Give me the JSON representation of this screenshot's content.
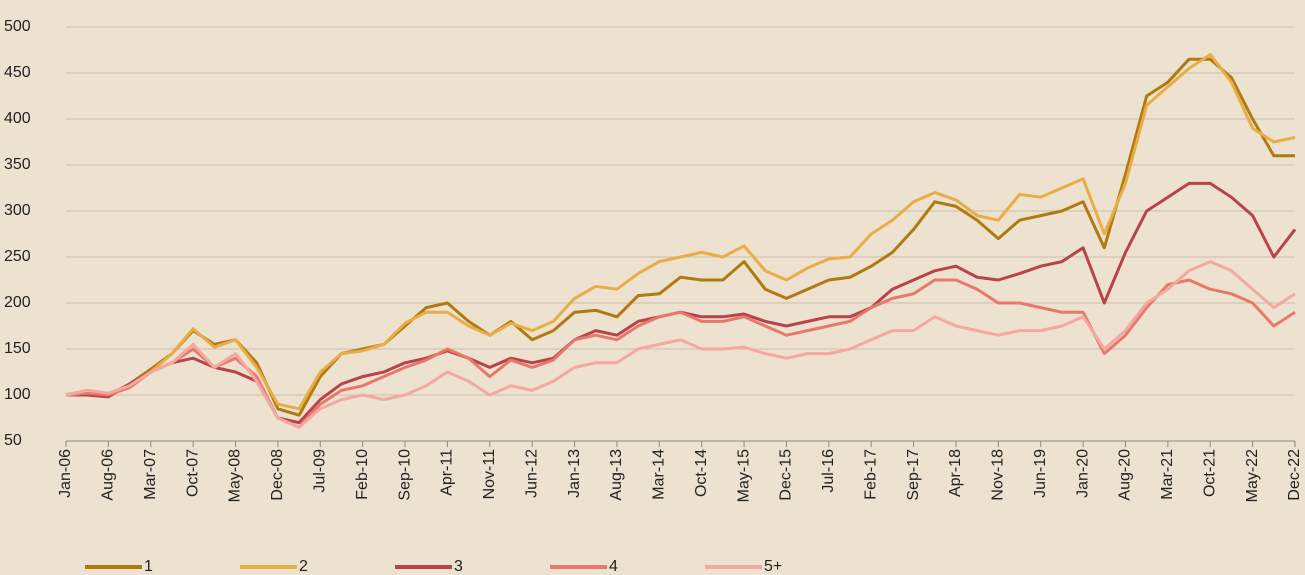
{
  "chart_data": {
    "type": "line",
    "categories": [
      "Jan-06",
      null,
      "Aug-06",
      null,
      "Mar-07",
      null,
      "Oct-07",
      null,
      "May-08",
      null,
      "Dec-08",
      null,
      "Jul-09",
      null,
      "Feb-10",
      null,
      "Sep-10",
      null,
      "Apr-11",
      null,
      "Nov-11",
      null,
      "Jun-12",
      null,
      "Jan-13",
      null,
      "Aug-13",
      null,
      "Mar-14",
      null,
      "Oct-14",
      null,
      "May-15",
      null,
      "Dec-15",
      null,
      "Jul-16",
      null,
      "Feb-17",
      null,
      "Sep-17",
      null,
      "Apr-18",
      null,
      "Nov-18",
      null,
      "Jun-19",
      null,
      "Jan-20",
      null,
      "Aug-20",
      null,
      "Mar-21",
      null,
      "Oct-21",
      null,
      "May-22",
      null,
      "Dec-22"
    ],
    "series": [
      {
        "name": "1",
        "color": "#b07a10",
        "values": [
          100,
          105,
          100,
          112,
          128,
          145,
          170,
          155,
          160,
          135,
          85,
          78,
          120,
          145,
          150,
          155,
          175,
          195,
          200,
          180,
          165,
          180,
          160,
          170,
          190,
          192,
          185,
          208,
          210,
          228,
          225,
          225,
          245,
          215,
          205,
          215,
          225,
          228,
          240,
          255,
          280,
          310,
          305,
          290,
          270,
          290,
          295,
          300,
          310,
          260,
          340,
          425,
          440,
          465,
          465,
          445,
          400,
          360,
          360
        ]
      },
      {
        "name": "2",
        "color": "#e8ae45",
        "values": [
          100,
          103,
          100,
          110,
          125,
          145,
          172,
          152,
          160,
          130,
          90,
          85,
          125,
          145,
          148,
          155,
          178,
          190,
          190,
          175,
          165,
          178,
          170,
          180,
          205,
          218,
          215,
          232,
          245,
          250,
          255,
          250,
          262,
          235,
          225,
          238,
          248,
          250,
          275,
          290,
          310,
          320,
          312,
          295,
          290,
          318,
          315,
          325,
          335,
          275,
          330,
          415,
          435,
          455,
          470,
          440,
          390,
          375,
          380
        ]
      },
      {
        "name": "3",
        "color": "#b8434a",
        "values": [
          100,
          100,
          98,
          112,
          125,
          135,
          140,
          130,
          125,
          115,
          75,
          70,
          95,
          112,
          120,
          125,
          135,
          140,
          148,
          140,
          130,
          140,
          135,
          140,
          160,
          170,
          165,
          180,
          185,
          190,
          185,
          185,
          188,
          180,
          175,
          180,
          185,
          185,
          195,
          215,
          225,
          235,
          240,
          228,
          225,
          232,
          240,
          245,
          260,
          200,
          255,
          300,
          315,
          330,
          330,
          315,
          295,
          250,
          280
        ]
      },
      {
        "name": "4",
        "color": "#e8786c",
        "values": [
          100,
          102,
          100,
          108,
          125,
          135,
          150,
          130,
          140,
          120,
          75,
          65,
          90,
          105,
          110,
          120,
          130,
          138,
          150,
          140,
          120,
          138,
          130,
          138,
          160,
          165,
          160,
          175,
          185,
          190,
          180,
          180,
          185,
          175,
          165,
          170,
          175,
          180,
          195,
          205,
          210,
          225,
          225,
          215,
          200,
          200,
          195,
          190,
          190,
          145,
          165,
          195,
          220,
          225,
          215,
          210,
          200,
          175,
          190
        ]
      },
      {
        "name": "5+",
        "color": "#f4a8a2",
        "values": [
          100,
          105,
          102,
          110,
          125,
          135,
          155,
          130,
          145,
          115,
          75,
          65,
          85,
          95,
          100,
          95,
          100,
          110,
          125,
          115,
          100,
          110,
          105,
          115,
          130,
          135,
          135,
          150,
          155,
          160,
          150,
          150,
          152,
          145,
          140,
          145,
          145,
          150,
          160,
          170,
          170,
          185,
          175,
          170,
          165,
          170,
          170,
          175,
          185,
          150,
          170,
          200,
          215,
          235,
          245,
          235,
          215,
          195,
          210
        ]
      }
    ],
    "ylim": [
      50,
      500
    ],
    "yticks": [
      50,
      100,
      150,
      200,
      250,
      300,
      350,
      400,
      450,
      500
    ],
    "grid": true,
    "legend": "bottom"
  }
}
